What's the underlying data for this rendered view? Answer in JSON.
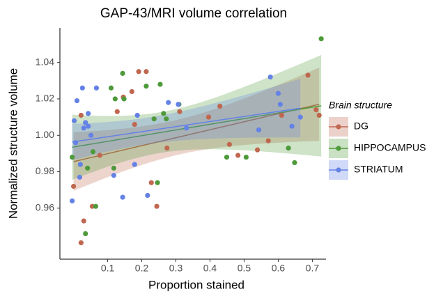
{
  "chart_data": {
    "type": "scatter",
    "title": "GAP-43/MRI volume correlation",
    "x_label": "Proportion stained",
    "y_label": "Normalized structure volume",
    "legend_title": "Brain structure",
    "legend_position": "right",
    "xlim": [
      -0.04,
      0.74
    ],
    "ylim": [
      0.932,
      1.059
    ],
    "xticks": [
      0.1,
      0.2,
      0.3,
      0.4,
      0.5,
      0.6,
      0.7
    ],
    "yticks": [
      0.96,
      0.98,
      {
        "value": 1.0,
        "label": "1.00"
      },
      1.02,
      1.04
    ],
    "fit": "linear",
    "series": [
      {
        "name": "DG",
        "color": "#c0674f",
        "x": [
          0,
          0.022,
          0.03,
          0.022,
          0.055,
          0.077,
          0.128,
          0.146,
          0.171,
          0.191,
          0.213,
          0.179,
          0.228,
          0.244,
          0.274,
          0.311,
          0.429,
          0.457,
          0.482,
          0.539,
          0.571,
          0.687,
          0.711,
          0.72,
          0.61,
          0.396
        ],
        "values": [
          0.972,
          1.011,
          0.953,
          0.941,
          0.961,
          0.989,
          1.013,
          1.021,
          1.024,
          1.035,
          1.035,
          1.006,
          0.974,
          0.961,
          0.993,
          1.013,
          1.016,
          0.995,
          0.989,
          0.992,
          0.997,
          1.033,
          1.014,
          1.011,
          1.011,
          1.01
        ]
      },
      {
        "name": "HIPPOCAMPUS",
        "color": "#4e9a3a",
        "x": [
          -0.004,
          0.035,
          0.041,
          0.065,
          0.11,
          0.122,
          0.144,
          0.148,
          0.118,
          0.213,
          0.236,
          0.246,
          0.264,
          0.272,
          0.254,
          0.309,
          0.506,
          0.449,
          0.63,
          0.648,
          0.726,
          0.057
        ],
        "values": [
          0.988,
          0.946,
          0.982,
          0.961,
          1.026,
          1.02,
          1.034,
          1.02,
          0.982,
          1.027,
          1.009,
          0.974,
          1.012,
          1.009,
          1.028,
          1.017,
          0.988,
          0.988,
          0.993,
          0.985,
          1.053,
          0.991
        ]
      },
      {
        "name": "STRIATUM",
        "color": "#6482e6",
        "x": [
          -0.004,
          0.002,
          0.006,
          0.01,
          0.026,
          0.03,
          0.035,
          0.043,
          0.051,
          0.02,
          0.018,
          0.067,
          0.118,
          0.144,
          0.179,
          0.217,
          0.278,
          0.187,
          0.307,
          0.331,
          0.577,
          0.6,
          0.606,
          0.64,
          0.665,
          0.543,
          0.043
        ],
        "values": [
          0.964,
          1.008,
          0.996,
          1.019,
          1.026,
          1.004,
          1.007,
          1.005,
          1.0,
          0.984,
          0.977,
          1.026,
          0.978,
          0.966,
          0.984,
          0.967,
          1.018,
          1.011,
          1.017,
          1.004,
          1.032,
          1.023,
          1.017,
          1.005,
          1.01,
          1.003,
          1.012
        ]
      }
    ]
  }
}
